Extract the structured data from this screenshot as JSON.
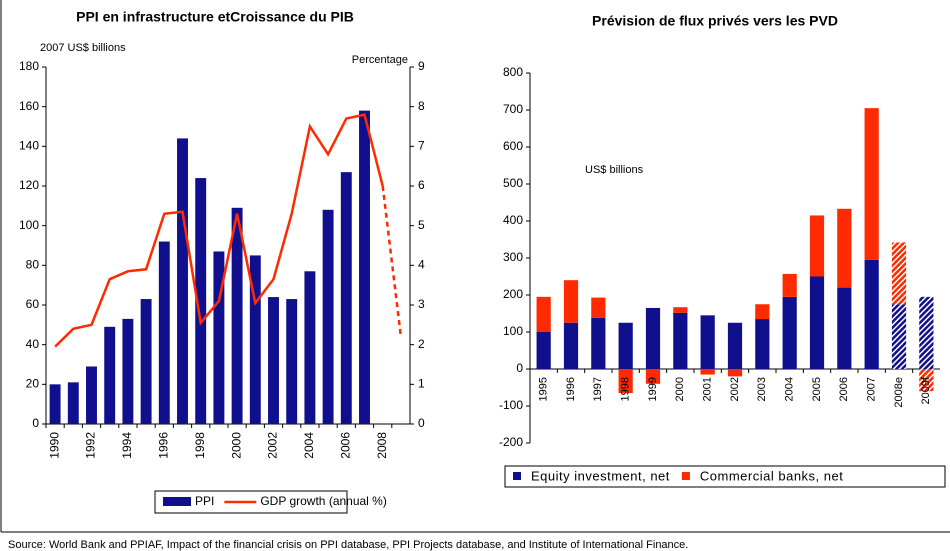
{
  "chart_data": [
    {
      "type": "bar_line",
      "title": "PPI  en infrastructure etCroissance du PIB",
      "ylabel": "2007 US$ billions",
      "y2label": "Percentage",
      "categories": [
        "1990",
        null,
        "1992",
        null,
        "1994",
        null,
        "1996",
        null,
        "1998",
        null,
        "2000",
        null,
        "2002",
        null,
        "2004",
        null,
        "2006",
        null,
        "2008",
        null
      ],
      "series": [
        {
          "name": "PPI",
          "kind": "bar",
          "color": "#10108f",
          "values": [
            20,
            21,
            29,
            49,
            53,
            63,
            92,
            144,
            124,
            87,
            109,
            85,
            64,
            63,
            77,
            108,
            127,
            158,
            null,
            null
          ]
        },
        {
          "name": "GDP growth (annual %)",
          "kind": "line",
          "axis": "y2",
          "color": "#ff2a00",
          "values": [
            1.95,
            2.4,
            2.5,
            3.65,
            3.85,
            3.9,
            5.3,
            5.35,
            2.55,
            3.1,
            5.3,
            3.05,
            3.65,
            5.3,
            7.5,
            6.8,
            7.7,
            7.8,
            6.0,
            null
          ]
        },
        {
          "kind": "line",
          "axis": "y2",
          "color": "#ff2a00",
          "dashed": true,
          "values": [
            null,
            null,
            null,
            null,
            null,
            null,
            null,
            null,
            null,
            null,
            null,
            null,
            null,
            null,
            null,
            null,
            null,
            null,
            6.0,
            2.2
          ]
        }
      ],
      "ylim": [
        0,
        180
      ],
      "yticks": [
        0,
        20,
        40,
        60,
        80,
        100,
        120,
        140,
        160,
        180
      ],
      "y2lim": [
        0,
        9
      ],
      "y2ticks": [
        0,
        1,
        2,
        3,
        4,
        5,
        6,
        7,
        8,
        9
      ]
    },
    {
      "type": "stacked_bar",
      "title": "Prévision de flux privés vers les PVD",
      "annotation": "US$ billions",
      "categories": [
        "1995",
        "1996",
        "1997",
        "1998",
        "1999",
        "2000",
        "2001",
        "2002",
        "2003",
        "2004",
        "2005",
        "2006",
        "2007",
        "2008e",
        "2009f"
      ],
      "series": [
        {
          "name": "Equity investment, net",
          "color": "#10108f",
          "values": [
            100,
            125,
            138,
            125,
            165,
            152,
            145,
            125,
            135,
            195,
            250,
            220,
            295,
            175,
            195
          ]
        },
        {
          "name": "Commercial banks, net",
          "color": "#ff2a00",
          "values": [
            95,
            115,
            55,
            -65,
            -40,
            15,
            -15,
            -20,
            40,
            62,
            165,
            213,
            410,
            167,
            -60
          ]
        }
      ],
      "forecast_from": 13,
      "ylim": [
        -200,
        800
      ],
      "yticks": [
        -200,
        -100,
        0,
        100,
        200,
        300,
        400,
        500,
        600,
        700,
        800
      ]
    }
  ],
  "source": "Source: World Bank and PPIAF, Impact of the financial crisis on PPI database, PPI Projects database, and Institute of International Finance."
}
